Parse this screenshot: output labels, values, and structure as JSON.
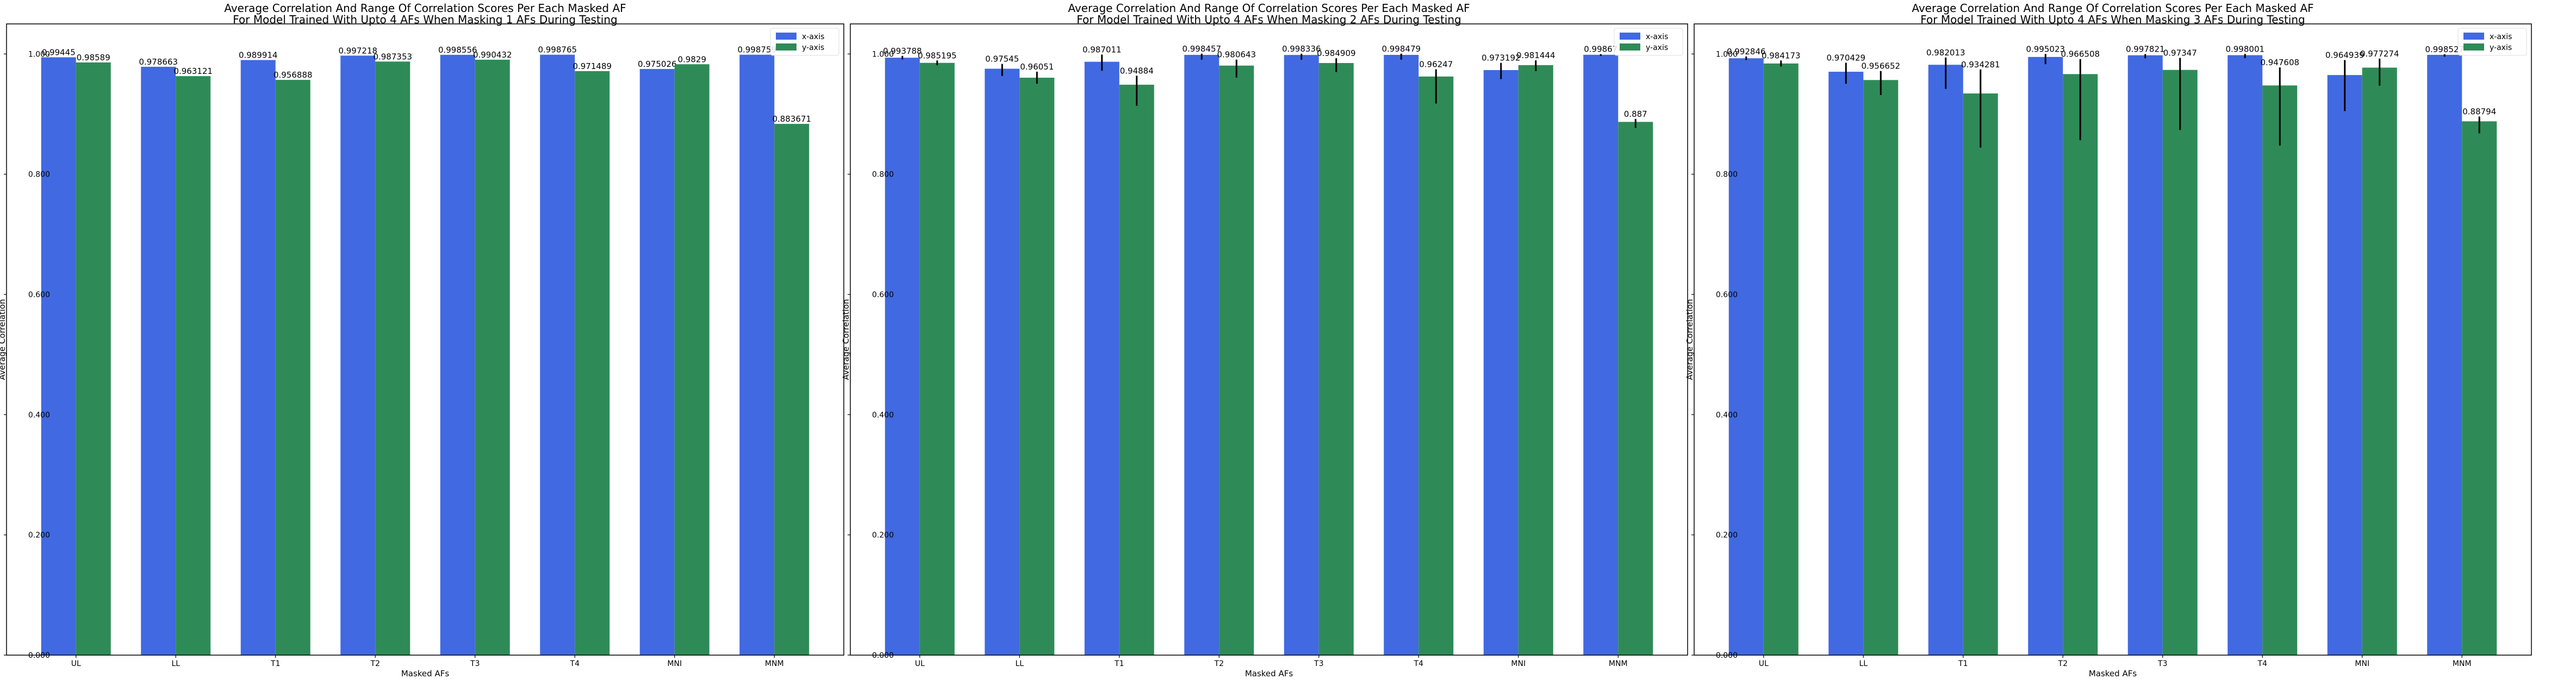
{
  "chart_data": [
    {
      "type": "bar",
      "title": "Average Correlation And Range Of Correlation Scores Per Each Masked AF",
      "subtitle": "For Model Trained With Upto 4 AFs When Masking 1 AFs During Testing",
      "xlabel": "Masked AFs",
      "ylabel": "Average Correlation",
      "ylim": [
        0,
        1.05
      ],
      "yticks": [
        "0.000",
        "0.200",
        "0.400",
        "0.600",
        "0.800",
        "1.000"
      ],
      "categories": [
        "UL",
        "LL",
        "T1",
        "T2",
        "T3",
        "T4",
        "MNI",
        "MNM"
      ],
      "legend_position": "top-right",
      "series": [
        {
          "name": "x-axis",
          "color": "#4169e1",
          "values": [
            0.99445,
            0.978663,
            0.989914,
            0.997218,
            0.998556,
            0.998765,
            0.975026,
            0.998759
          ],
          "labels": [
            "0.99445",
            "0.978663",
            "0.989914",
            "0.997218",
            "0.998556",
            "0.998765",
            "0.975026",
            "0.998759"
          ],
          "err_low": [
            0,
            0,
            0,
            0,
            0,
            0,
            0,
            0
          ],
          "err_high": [
            0,
            0,
            0,
            0,
            0,
            0,
            0,
            0
          ]
        },
        {
          "name": "y-axis",
          "color": "#2e8b57",
          "values": [
            0.98589,
            0.963121,
            0.956888,
            0.987353,
            0.990432,
            0.971489,
            0.9829,
            0.883671
          ],
          "labels": [
            "0.98589",
            "0.963121",
            "0.956888",
            "0.987353",
            "0.990432",
            "0.971489",
            "0.9829",
            "0.883671"
          ],
          "err_low": [
            0,
            0,
            0,
            0,
            0,
            0,
            0,
            0
          ],
          "err_high": [
            0,
            0,
            0,
            0,
            0,
            0,
            0,
            0
          ]
        }
      ]
    },
    {
      "type": "bar",
      "title": "Average Correlation And Range Of Correlation Scores Per Each Masked AF",
      "subtitle": "For Model Trained With Upto 4 AFs When Masking 2 AFs During Testing",
      "xlabel": "Masked AFs",
      "ylabel": "Average Correlation",
      "ylim": [
        0,
        1.05
      ],
      "yticks": [
        "0.000",
        "0.200",
        "0.400",
        "0.600",
        "0.800",
        "1.000"
      ],
      "categories": [
        "UL",
        "LL",
        "T1",
        "T2",
        "T3",
        "T4",
        "MNI",
        "MNM"
      ],
      "legend_position": "top-right",
      "series": [
        {
          "name": "x-axis",
          "color": "#4169e1",
          "values": [
            0.993788,
            0.97545,
            0.987011,
            0.998457,
            0.998336,
            0.998479,
            0.973192,
            0.99867
          ],
          "labels": [
            "0.993788",
            "0.97545",
            "0.987011",
            "0.998457",
            "0.998336",
            "0.998479",
            "0.973192",
            "0.99867"
          ],
          "err_low": [
            0.003,
            0.012,
            0.015,
            0.008,
            0.008,
            0.008,
            0.015,
            0.002
          ],
          "err_high": [
            0.003,
            0.008,
            0.012,
            0.002,
            0.002,
            0.002,
            0.012,
            0.001
          ]
        },
        {
          "name": "y-axis",
          "color": "#2e8b57",
          "values": [
            0.985195,
            0.96051,
            0.94884,
            0.980643,
            0.984909,
            0.96247,
            0.981444,
            0.887
          ],
          "labels": [
            "0.985195",
            "0.96051",
            "0.94884",
            "0.980643",
            "0.984909",
            "0.96247",
            "0.981444",
            "0.887"
          ],
          "err_low": [
            0.004,
            0.01,
            0.035,
            0.02,
            0.015,
            0.045,
            0.01,
            0.01
          ],
          "err_high": [
            0.004,
            0.01,
            0.015,
            0.01,
            0.008,
            0.012,
            0.008,
            0.005
          ]
        }
      ]
    },
    {
      "type": "bar",
      "title": "Average Correlation And Range Of Correlation Scores Per Each Masked AF",
      "subtitle": "For Model Trained With Upto 4 AFs When Masking 3 AFs During Testing",
      "xlabel": "Masked AFs",
      "ylabel": "Average Correlation",
      "ylim": [
        0,
        1.05
      ],
      "yticks": [
        "0.000",
        "0.200",
        "0.400",
        "0.600",
        "0.800",
        "1.000"
      ],
      "categories": [
        "UL",
        "LL",
        "T1",
        "T2",
        "T3",
        "T4",
        "MNI",
        "MNM"
      ],
      "legend_position": "top-right",
      "series": [
        {
          "name": "x-axis",
          "color": "#4169e1",
          "values": [
            0.992846,
            0.970429,
            0.982013,
            0.995023,
            0.997821,
            0.998001,
            0.964939,
            0.998527
          ],
          "labels": [
            "0.992846",
            "0.970429",
            "0.982013",
            "0.995023",
            "0.997821",
            "0.998001",
            "0.964939",
            "0.998527"
          ],
          "err_low": [
            0.003,
            0.02,
            0.04,
            0.012,
            0.005,
            0.005,
            0.06,
            0.003
          ],
          "err_high": [
            0.003,
            0.015,
            0.012,
            0.005,
            0.002,
            0.002,
            0.025,
            0.001
          ]
        },
        {
          "name": "y-axis",
          "color": "#2e8b57",
          "values": [
            0.984173,
            0.956652,
            0.934281,
            0.966508,
            0.97347,
            0.947608,
            0.977274,
            0.88794
          ],
          "labels": [
            "0.984173",
            "0.956652",
            "0.934281",
            "0.966508",
            "0.97347",
            "0.947608",
            "0.977274",
            "0.88794"
          ],
          "err_low": [
            0.005,
            0.025,
            0.09,
            0.11,
            0.1,
            0.1,
            0.03,
            0.02
          ],
          "err_high": [
            0.005,
            0.015,
            0.04,
            0.025,
            0.02,
            0.03,
            0.015,
            0.008
          ]
        }
      ]
    }
  ]
}
